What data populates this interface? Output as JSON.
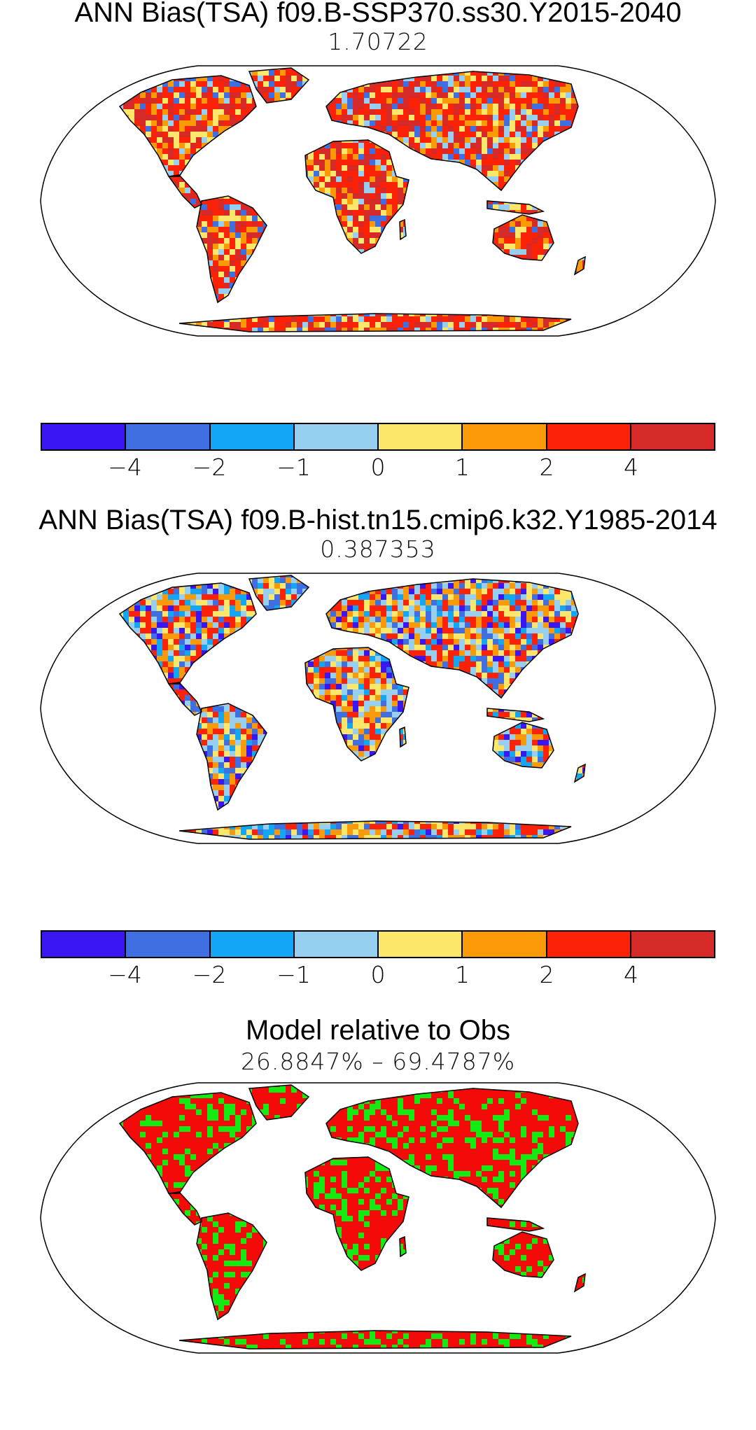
{
  "panels": [
    {
      "title": "ANN Bias(TSA) f09.B-SSP370.ss30.Y2015-2040",
      "subtitle": "1.70722",
      "kind": "bias"
    },
    {
      "title": "ANN Bias(TSA) f09.B-hist.tn15.cmip6.k32.Y1985-2014",
      "subtitle": "0.387353",
      "kind": "bias"
    },
    {
      "title": "Model relative to Obs",
      "subtitle": "26.8847% – 69.4787%",
      "kind": "relative"
    }
  ],
  "colorbar": {
    "colors": [
      "#3a16f2",
      "#3f6fe0",
      "#12a6f5",
      "#97cff0",
      "#fce76a",
      "#fb9a08",
      "#fb2207",
      "#d62a28"
    ],
    "tick_labels": [
      "−4",
      "−2",
      "−1",
      "0",
      "1",
      "2",
      "4"
    ]
  },
  "colors": {
    "land_outline": "#000000",
    "relative_red": "#f50a0a",
    "relative_green": "#12ec12"
  }
}
